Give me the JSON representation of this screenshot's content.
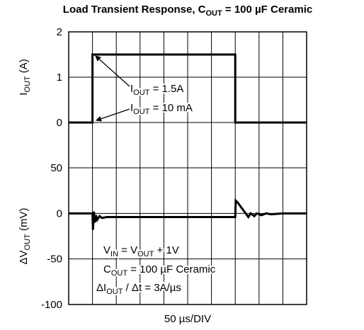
{
  "chart_data": [
    {
      "type": "line",
      "title": [
        "Load Transient Response, C",
        "OUT",
        " = 100 µF Ceramic"
      ],
      "ylabel": [
        "I",
        "OUT",
        " (A)"
      ],
      "xlabel": "50 µs/DIV",
      "xlim": [
        0,
        10
      ],
      "xticks": [
        0,
        1,
        2,
        3,
        4,
        5,
        6,
        7,
        8,
        9,
        10
      ],
      "ylim": [
        0,
        2
      ],
      "yticks": [
        0,
        1,
        2
      ],
      "grid": true,
      "series": [
        {
          "color": "#000000",
          "x": [
            0,
            1,
            1,
            7,
            7,
            10
          ],
          "values": [
            0,
            0,
            1.5,
            1.5,
            0,
            0
          ]
        }
      ],
      "annotations": [
        [
          "I",
          "OUT",
          " = 1.5A"
        ],
        [
          "I",
          "OUT",
          " = 10 mA"
        ]
      ]
    },
    {
      "type": "line",
      "ylabel": [
        "ΔV",
        "OUT",
        " (mV)"
      ],
      "xlim": [
        0,
        10
      ],
      "ylim": [
        -100,
        50
      ],
      "yticks": [
        -100,
        -50,
        0,
        50
      ],
      "grid": true,
      "series": [
        {
          "color": "#000000",
          "x": [
            0,
            1,
            1.02,
            1.06,
            1.1,
            1.15,
            1.2,
            1.3,
            1.4,
            1.6,
            2,
            7,
            7.02,
            7.1,
            7.55,
            7.65,
            7.8,
            7.9,
            8.1,
            8.3,
            8.5,
            9,
            10
          ],
          "values": [
            0,
            0,
            -18,
            2,
            -10,
            -2,
            -7,
            -3,
            -5,
            -4,
            -4,
            -4,
            14,
            12,
            -4,
            0,
            -3,
            0,
            -2,
            0,
            -1,
            0,
            0
          ]
        }
      ],
      "annotations": [
        [
          "V",
          "IN",
          " = V",
          "OUT",
          " + 1V"
        ],
        [
          "C",
          "OUT",
          " = 100 µF Ceramic"
        ],
        [
          "ΔI",
          "OUT",
          " / Δt = 3A/µs"
        ]
      ]
    }
  ]
}
